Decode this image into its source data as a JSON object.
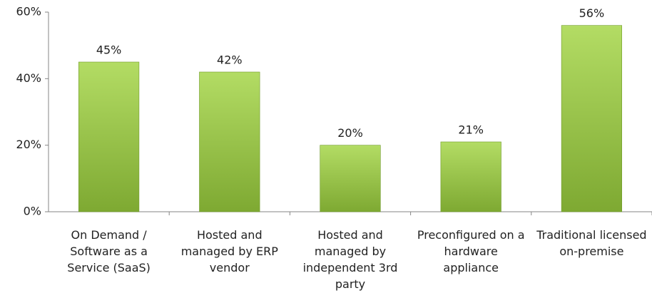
{
  "chart_data": {
    "type": "bar",
    "categories": [
      "On Demand / Software as a Service (SaaS)",
      "Hosted and managed by ERP vendor",
      "Hosted and managed by independent 3rd party",
      "Preconfigured on a hardware appliance",
      "Traditional licensed on-premise"
    ],
    "values": [
      45,
      42,
      20,
      21,
      56
    ],
    "value_labels": [
      "45%",
      "42%",
      "20%",
      "21%",
      "56%"
    ],
    "color": "#92c83e",
    "ylim": [
      0,
      60
    ],
    "yticks": [
      {
        "value": 0,
        "label": "0%"
      },
      {
        "value": 20,
        "label": "20%"
      },
      {
        "value": 40,
        "label": "40%"
      },
      {
        "value": 60,
        "label": "60%"
      }
    ],
    "grid": false
  }
}
